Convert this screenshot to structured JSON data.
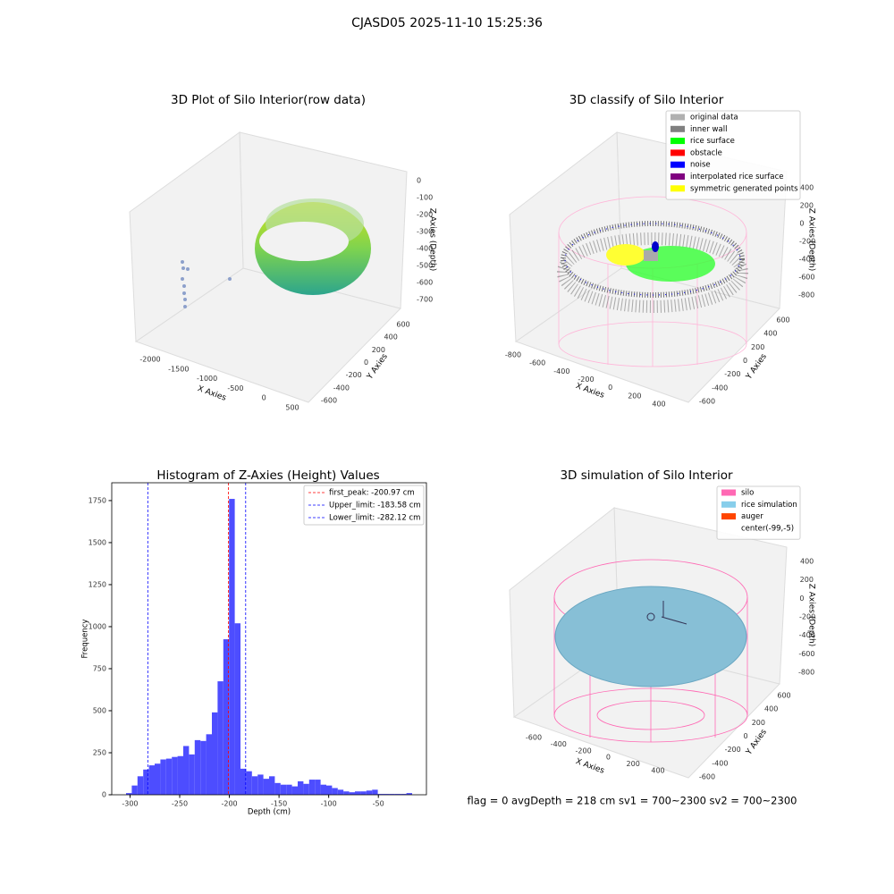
{
  "title": "CJASD05 2025-11-10 15:25:36",
  "footer": "flag = 0     avgDepth = 218 cm  sv1 = 700~2300  sv2 = 700~2300",
  "chart_data": [
    {
      "type": "scatter3d",
      "title": "3D Plot of Silo Interior(row data)",
      "xlabel": "X Axies",
      "ylabel": "Y Axies",
      "zlabel": "Z Axies (Depth)",
      "xticks": [
        -2000,
        -1500,
        -1000,
        -500,
        0,
        500
      ],
      "yticks": [
        -600,
        -400,
        -200,
        0,
        200,
        400,
        600
      ],
      "zticks": [
        0,
        -100,
        -200,
        -300,
        -400,
        -500,
        -600,
        -700
      ]
    },
    {
      "type": "scatter3d",
      "title": "3D classify of Silo Interior",
      "xlabel": "X Axies",
      "ylabel": "Y Axies",
      "zlabel": "Z Axies (Depth)",
      "xticks": [
        -800,
        -600,
        -400,
        -200,
        0,
        200,
        400
      ],
      "yticks": [
        -600,
        -400,
        -200,
        0,
        200,
        400,
        600
      ],
      "zticks": [
        400,
        200,
        0,
        -200,
        -400,
        -600,
        -800
      ],
      "legend": [
        {
          "name": "original data",
          "color": "#b0b0b0"
        },
        {
          "name": "inner wall",
          "color": "#808080"
        },
        {
          "name": "rice surface",
          "color": "#00ff00"
        },
        {
          "name": "obstacle",
          "color": "#ff0000"
        },
        {
          "name": "noise",
          "color": "#0000ff"
        },
        {
          "name": "interpolated rice surface",
          "color": "#800080"
        },
        {
          "name": "symmetric generated points",
          "color": "#ffff00"
        }
      ]
    },
    {
      "type": "histogram",
      "title": "Histogram of Z-Axies (Height) Values",
      "xlabel": "Depth (cm)",
      "ylabel": "Frequency",
      "color": "#4d4dff",
      "bins": [
        -304,
        -298.24,
        -292.48,
        -286.72,
        -280.96,
        -275.2,
        -269.44,
        -263.68,
        -257.92,
        -252.16,
        -246.4,
        -240.64,
        -234.88,
        -229.12,
        -223.36,
        -217.6,
        -211.84,
        -206.08,
        -200.32,
        -194.56,
        -188.8,
        -183.04,
        -177.28,
        -171.52,
        -165.76,
        -160,
        -154.24,
        -148.48,
        -142.72,
        -136.96,
        -131.2,
        -125.44,
        -119.68,
        -113.92,
        -108.16,
        -102.4,
        -96.64,
        -90.88,
        -85.12,
        -79.36,
        -73.6,
        -67.84,
        -62.08,
        -56.32,
        -50.56,
        -44.8,
        -39.04,
        -33.28,
        -27.52,
        -21.76,
        -16
      ],
      "values": [
        10,
        55,
        110,
        150,
        175,
        185,
        210,
        215,
        225,
        230,
        290,
        240,
        325,
        320,
        360,
        490,
        675,
        925,
        1760,
        1020,
        155,
        140,
        110,
        120,
        95,
        110,
        70,
        60,
        60,
        50,
        80,
        65,
        90,
        90,
        60,
        55,
        40,
        30,
        20,
        15,
        20,
        20,
        25,
        30,
        5,
        5,
        5,
        5,
        5,
        10
      ],
      "xlim": [
        -318.4,
        -1.6
      ],
      "ylim": [
        0,
        1856
      ],
      "xticks": [
        -300,
        -250,
        -200,
        -150,
        -100,
        -50
      ],
      "yticks": [
        0,
        250,
        500,
        750,
        1000,
        1250,
        1500,
        1750
      ],
      "vlines": [
        {
          "label": "first_peak: -200.97 cm",
          "value": -200.97,
          "color": "#ff0000"
        },
        {
          "label": "Upper_limit: -183.58 cm",
          "value": -183.58,
          "color": "#0000ff"
        },
        {
          "label": "Lower_limit: -282.12 cm",
          "value": -282.12,
          "color": "#0000ff"
        }
      ]
    },
    {
      "type": "scatter3d",
      "title": "3D simulation of Silo Interior",
      "xlabel": "X Axies",
      "ylabel": "Y Axies",
      "zlabel": "Z Axies (Depth)",
      "xticks": [
        -600,
        -400,
        -200,
        0,
        200,
        400
      ],
      "yticks": [
        -600,
        -400,
        -200,
        0,
        200,
        400,
        600
      ],
      "zticks": [
        400,
        200,
        0,
        -200,
        -400,
        -600,
        -800
      ],
      "legend": [
        {
          "name": "silo",
          "color": "#ff69b4"
        },
        {
          "name": "rice simulation",
          "color": "#87ceeb"
        },
        {
          "name": "auger",
          "color": "#ff4500"
        },
        {
          "name": "center(-99,-5)",
          "color": "#ffffff"
        }
      ]
    }
  ]
}
